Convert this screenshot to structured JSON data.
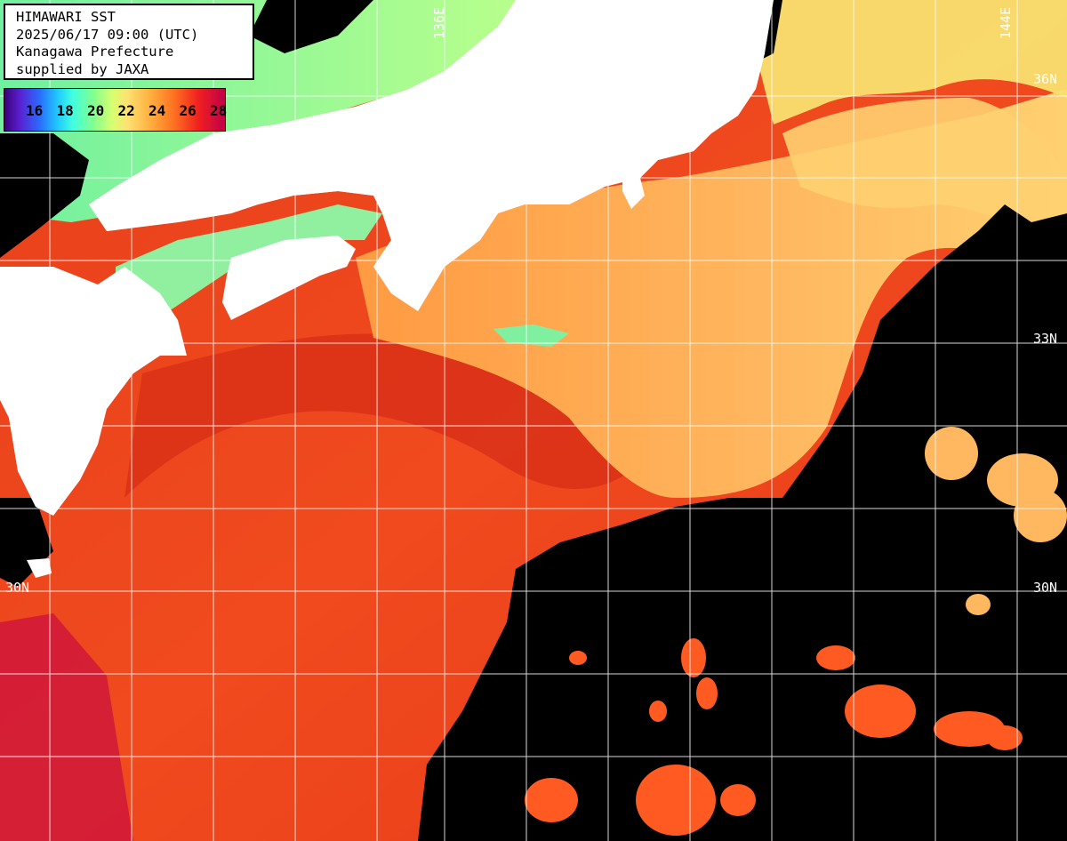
{
  "header": {
    "line1": "HIMAWARI SST",
    "line2": "2025/06/17 09:00 (UTC)",
    "line3": "Kanagawa Prefecture",
    "line4": "supplied by JAXA"
  },
  "temperature_scale": {
    "labels": [
      "16",
      "18",
      "20",
      "22",
      "24",
      "26",
      "28"
    ],
    "colors": {
      "16": "#5a20d0",
      "18": "#2a9cff",
      "20": "#40ffe0",
      "22": "#b0ff80",
      "24": "#ffe070",
      "26": "#ff9a40",
      "28": "#e02020"
    }
  },
  "grid_labels": {
    "lon_136": "136E",
    "lon_144": "144E",
    "lat_36_right": "36N",
    "lat_33_right": "33N",
    "lat_30_left": "30N",
    "lat_30_right": "30N"
  },
  "colors": {
    "land": "#ffffff",
    "no_data": "#000000",
    "grid": "#ffffff"
  }
}
